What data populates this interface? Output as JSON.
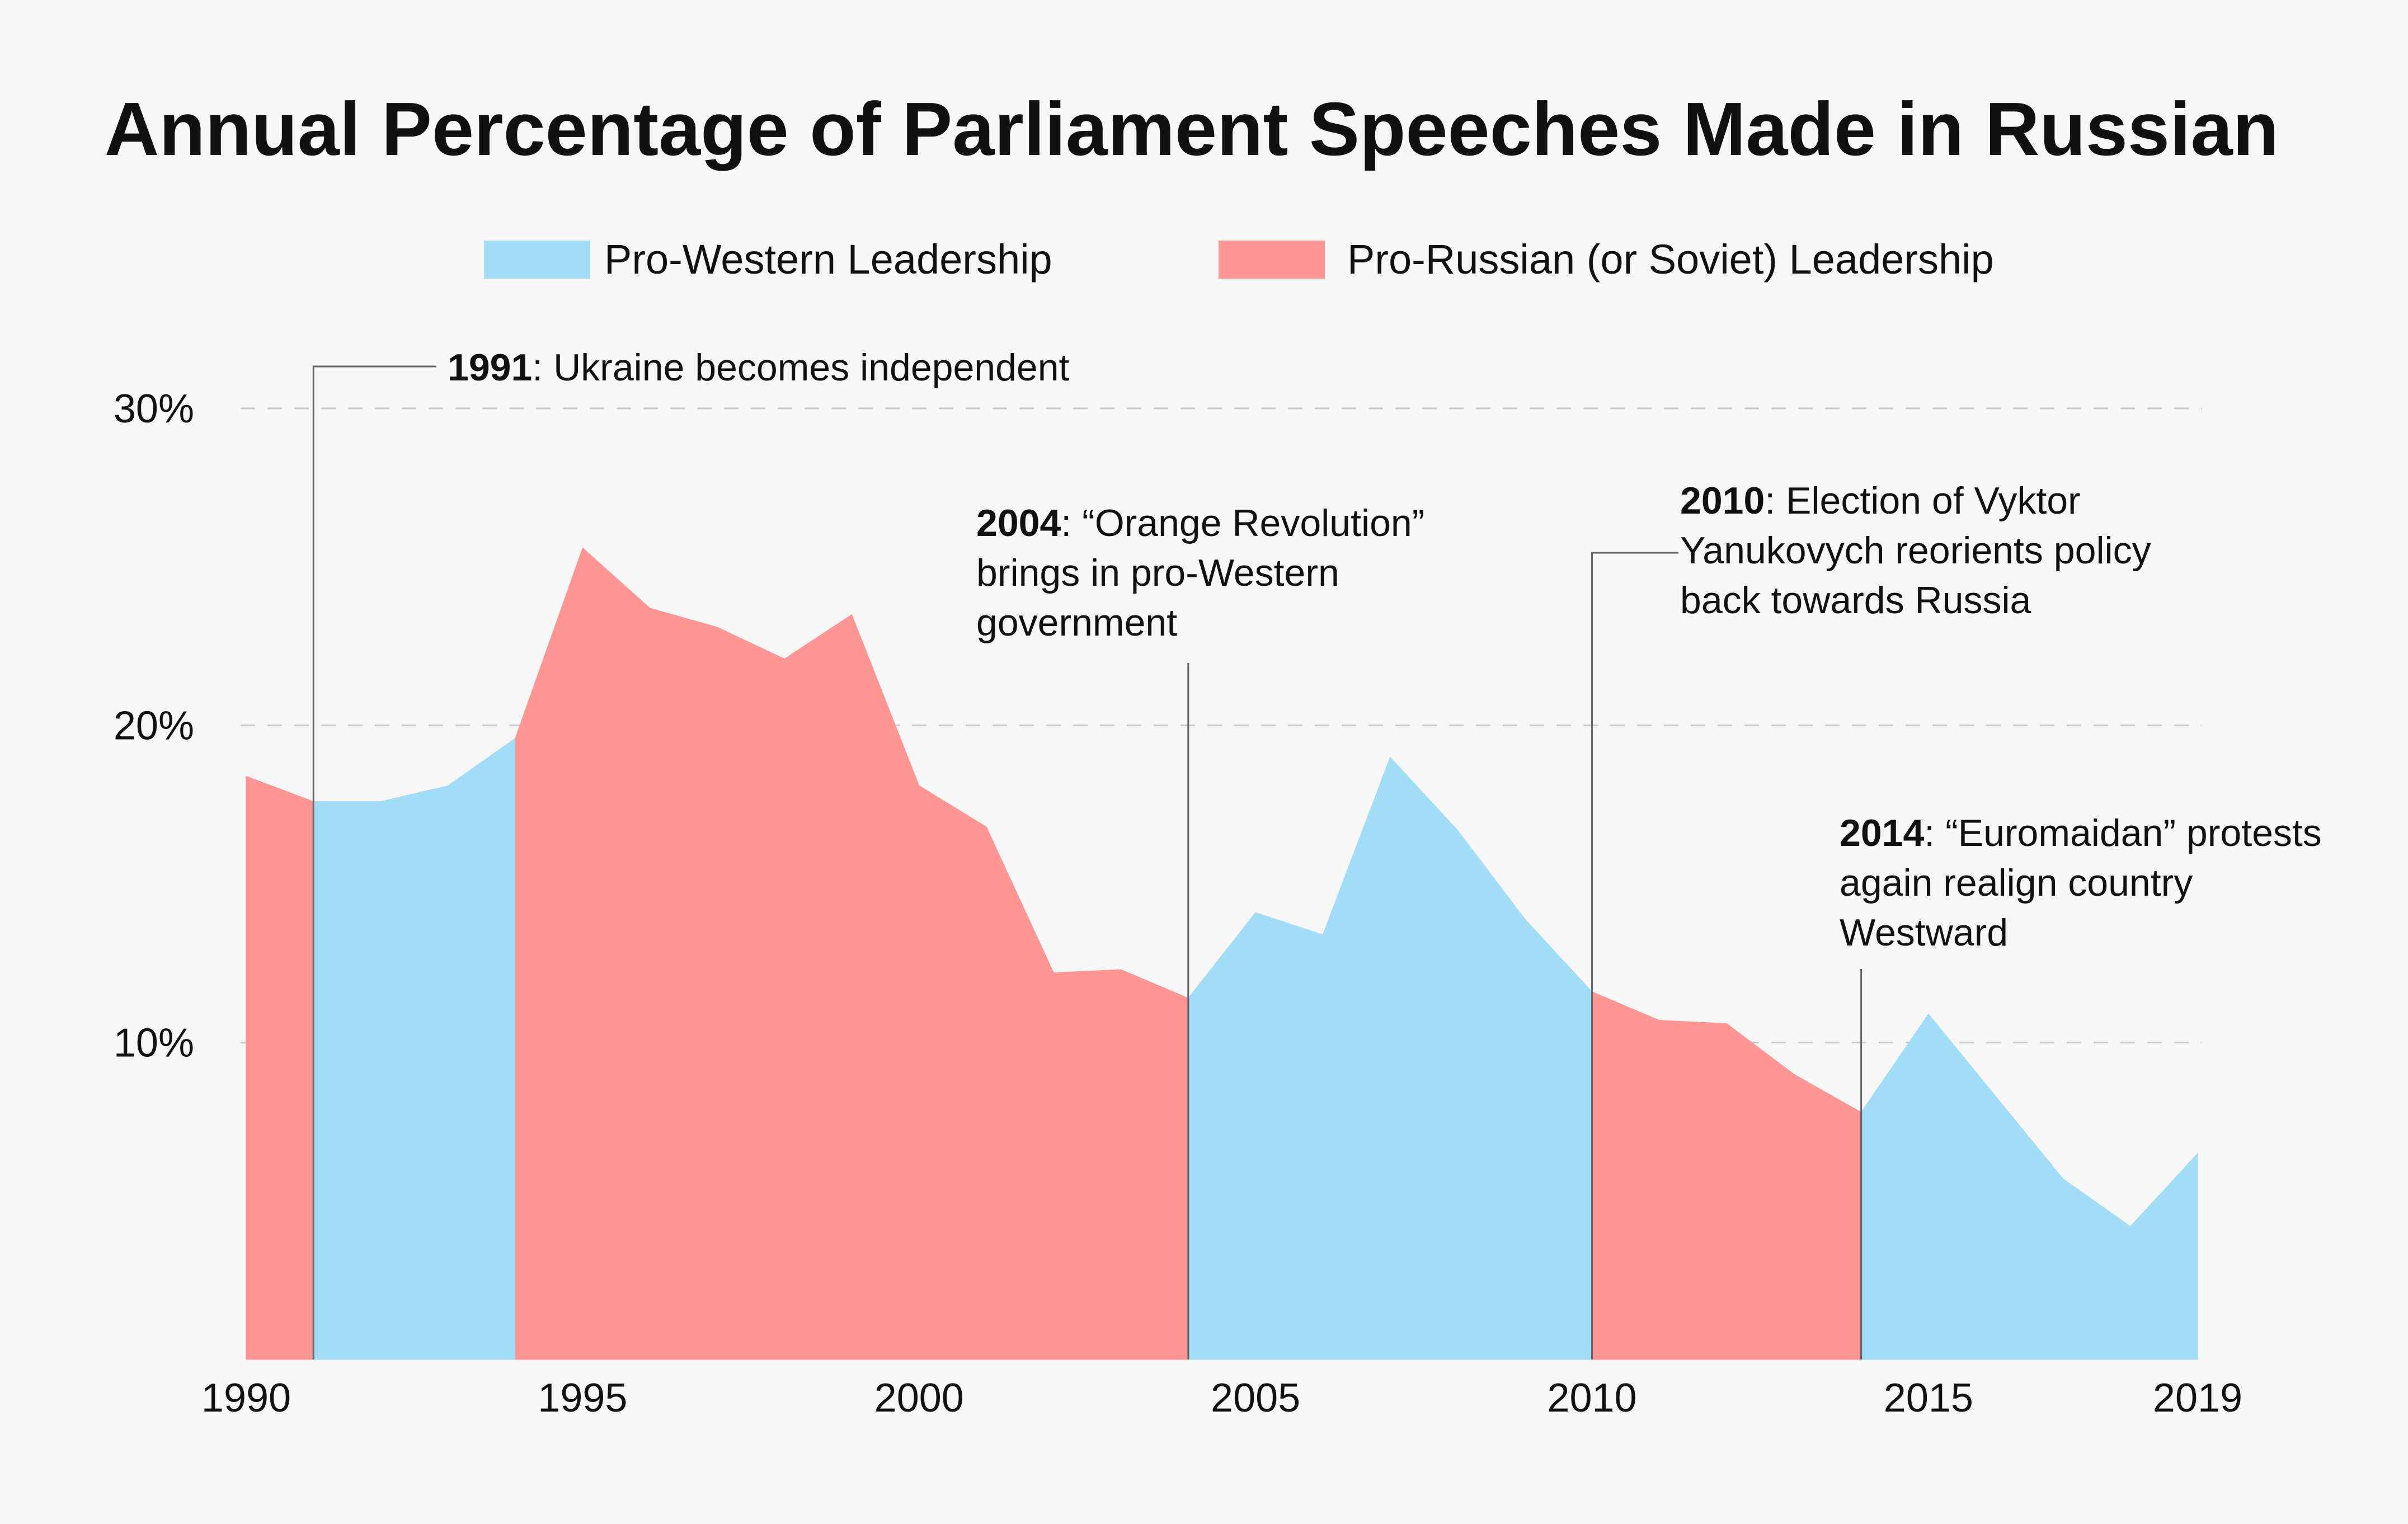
{
  "chart_data": {
    "type": "area",
    "title": "Annual Percentage of Parliament Speeches Made in Russian",
    "xlabel": "",
    "ylabel": "",
    "xlim": [
      1990,
      2019
    ],
    "ylim": [
      0,
      30
    ],
    "grid": true,
    "legend_position": "top-center",
    "x_ticks": [
      "1990",
      "1995",
      "2000",
      "2005",
      "2010",
      "2015",
      "2019"
    ],
    "y_ticks": [
      "10%",
      "20%",
      "30%"
    ],
    "legend": [
      {
        "label": "Pro-Western Leadership",
        "color": "#a2dcf7"
      },
      {
        "label": "Pro-Russian (or Soviet) Leadership",
        "color": "#fe9696"
      }
    ],
    "points": [
      {
        "x": 1990,
        "y": 18.4
      },
      {
        "x": 1991,
        "y": 17.6
      },
      {
        "x": 1992,
        "y": 17.6
      },
      {
        "x": 1993,
        "y": 18.1
      },
      {
        "x": 1994,
        "y": 19.6
      },
      {
        "x": 1995,
        "y": 25.6
      },
      {
        "x": 1996,
        "y": 23.7
      },
      {
        "x": 1997,
        "y": 23.1
      },
      {
        "x": 1998,
        "y": 22.1
      },
      {
        "x": 1999,
        "y": 23.5
      },
      {
        "x": 2000,
        "y": 18.1
      },
      {
        "x": 2001,
        "y": 16.8
      },
      {
        "x": 2002,
        "y": 12.2
      },
      {
        "x": 2003,
        "y": 12.3
      },
      {
        "x": 2004,
        "y": 11.4
      },
      {
        "x": 2005,
        "y": 14.1
      },
      {
        "x": 2006,
        "y": 13.4
      },
      {
        "x": 2007,
        "y": 19.0
      },
      {
        "x": 2008,
        "y": 16.7
      },
      {
        "x": 2009,
        "y": 13.9
      },
      {
        "x": 2010,
        "y": 11.6
      },
      {
        "x": 2011,
        "y": 10.7
      },
      {
        "x": 2012,
        "y": 10.6
      },
      {
        "x": 2013,
        "y": 9.0
      },
      {
        "x": 2014,
        "y": 7.8
      },
      {
        "x": 2015,
        "y": 10.9
      },
      {
        "x": 2016,
        "y": 8.3
      },
      {
        "x": 2017,
        "y": 5.7
      },
      {
        "x": 2018,
        "y": 4.2
      },
      {
        "x": 2019,
        "y": 6.5
      }
    ],
    "periods": [
      {
        "start": 1990,
        "end": 1991,
        "leadership": "Pro-Russian (or Soviet) Leadership"
      },
      {
        "start": 1991,
        "end": 1994,
        "leadership": "Pro-Western Leadership"
      },
      {
        "start": 1994,
        "end": 2004,
        "leadership": "Pro-Russian (or Soviet) Leadership"
      },
      {
        "start": 2004,
        "end": 2010,
        "leadership": "Pro-Western Leadership"
      },
      {
        "start": 2010,
        "end": 2014,
        "leadership": "Pro-Russian (or Soviet) Leadership"
      },
      {
        "start": 2014,
        "end": 2019,
        "leadership": "Pro-Western Leadership"
      }
    ],
    "annotations": [
      {
        "x": 1991,
        "bold": "1991",
        "lines": [
          ": Ukraine becomes independent"
        ]
      },
      {
        "x": 2004,
        "bold": "2004",
        "lines": [
          ": “Orange Revolution”",
          "brings in pro-Western",
          "government"
        ]
      },
      {
        "x": 2010,
        "bold": "2010",
        "lines": [
          ": Election of Vyktor",
          "Yanukovych reorients policy",
          "back towards Russia"
        ]
      },
      {
        "x": 2014,
        "bold": "2014",
        "lines": [
          ": “Euromaidan” protests",
          "again realign country",
          "Westward"
        ]
      }
    ]
  }
}
